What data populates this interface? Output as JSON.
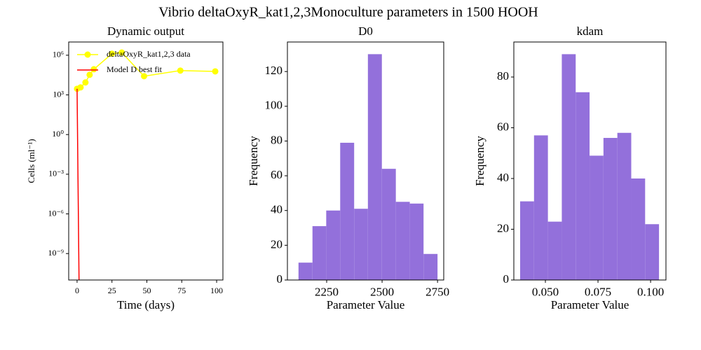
{
  "title": "Vibrio deltaOxyR_kat1,2,3Monoculture parameters in 1500 HOOH",
  "chart_data": [
    {
      "type": "line",
      "title": "Dynamic output",
      "xlabel": "Time (days)",
      "ylabel": "Cells (ml⁻¹)",
      "yscale": "log",
      "legend": "upper left",
      "xlim": [
        -6,
        104.5
      ],
      "xticks": [
        0,
        25,
        50,
        75,
        100
      ],
      "ylim": [
        1e-11,
        10000000.0
      ],
      "yticks": [
        {
          "value": 1e-09,
          "label": "10⁻⁹"
        },
        {
          "value": 1e-06,
          "label": "10⁻⁶"
        },
        {
          "value": 0.001,
          "label": "10⁻³"
        },
        {
          "value": 1,
          "label": "10⁰"
        },
        {
          "value": 1000,
          "label": "10³"
        },
        {
          "value": 1000000,
          "label": "10⁶"
        }
      ],
      "series": [
        {
          "name": "deltaOxyR_kat1,2,3 data",
          "color": "#ffff00",
          "marker": true,
          "x": [
            0,
            2.5,
            6,
            9,
            12,
            25,
            32,
            48,
            74,
            99
          ],
          "values": [
            2900,
            3700,
            8700,
            33000,
            87000,
            1300000,
            1600000,
            26000,
            69000,
            60000
          ]
        },
        {
          "name": "Model D best fit",
          "color": "#ff0000",
          "marker": false,
          "x": [
            0,
            1.5
          ],
          "values": [
            2900,
            1e-12
          ]
        }
      ]
    },
    {
      "type": "histogram",
      "title": "D0",
      "xlabel": "Parameter Value",
      "ylabel": "Frequency",
      "color": "#9370db",
      "xlim": [
        2073,
        2778
      ],
      "xticks": [
        2250,
        2500,
        2750
      ],
      "ylim": [
        0,
        137
      ],
      "yticks": [
        0,
        20,
        40,
        60,
        80,
        100,
        120
      ],
      "bins": [
        2123,
        2186,
        2248,
        2311,
        2374,
        2436,
        2499,
        2562,
        2625,
        2687,
        2750
      ],
      "values": [
        10,
        31,
        40,
        79,
        41,
        130,
        64,
        45,
        44,
        15
      ]
    },
    {
      "type": "histogram",
      "title": "kdam",
      "xlabel": "Parameter Value",
      "ylabel": "Frequency",
      "color": "#9370db",
      "xlim": [
        0.035,
        0.1073
      ],
      "xticks": [
        {
          "value": 0.05,
          "label": "0.050"
        },
        0.075,
        {
          "value": 0.1,
          "label": "0.100"
        }
      ],
      "ylim": [
        0,
        93.8
      ],
      "yticks": [
        0,
        20,
        40,
        60,
        80
      ],
      "bins": [
        0.038,
        0.0446,
        0.0512,
        0.0578,
        0.0644,
        0.071,
        0.0776,
        0.0842,
        0.0908,
        0.0974,
        0.104
      ],
      "values": [
        31,
        57,
        23,
        89,
        74,
        49,
        56,
        58,
        40,
        22
      ]
    }
  ]
}
